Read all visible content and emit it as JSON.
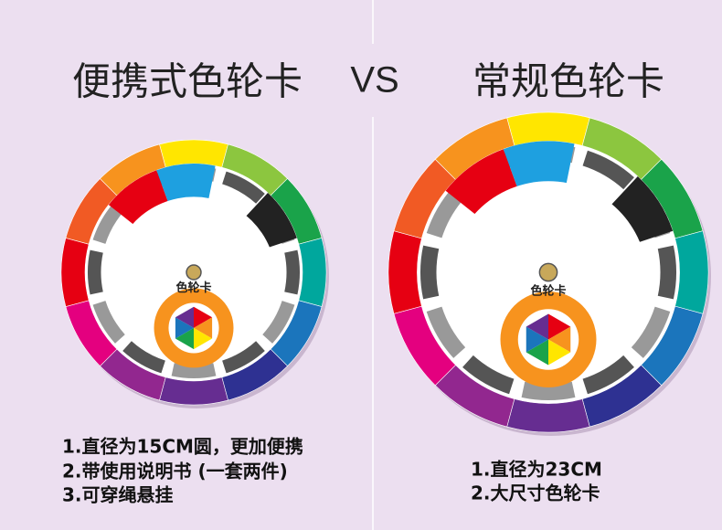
{
  "header": {
    "left_title": "便携式色轮卡",
    "vs": "VS",
    "right_title": "常规色轮卡"
  },
  "left_wheel": {
    "label": "色轮卡"
  },
  "right_wheel": {
    "label": "色轮卡"
  },
  "left_features": [
    "1.直径为15CM圆，更加便携",
    "2.带使用说明书 (一套两件)",
    "3.可穿绳悬挂"
  ],
  "right_features": [
    "1.直径为23CM",
    "2.大尺寸色轮卡"
  ]
}
